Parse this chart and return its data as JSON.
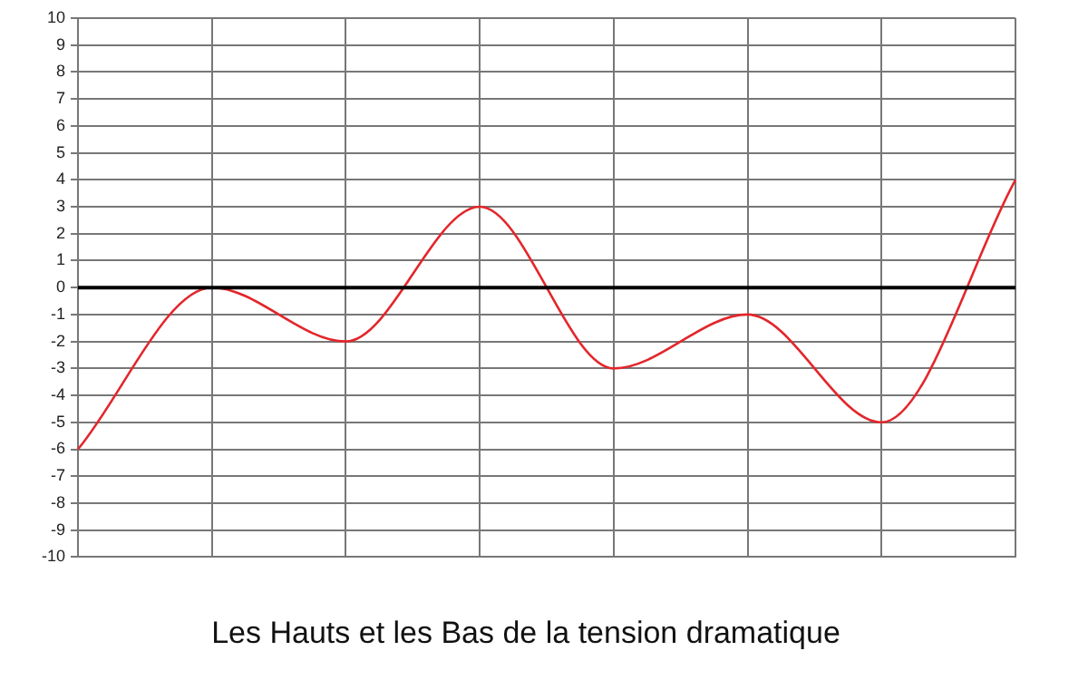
{
  "chart_data": {
    "type": "line",
    "title": "Les Hauts et les Bas de la tension dramatique",
    "categories": [
      null,
      null,
      null,
      null,
      null,
      null,
      null,
      null
    ],
    "series": [
      {
        "color": "#e3262b",
        "values": [
          -6,
          0,
          -2,
          3,
          -3,
          -1,
          -5,
          4
        ]
      }
    ],
    "ylim": [
      -10,
      10
    ],
    "yticks": [
      -10,
      -9,
      -8,
      -7,
      -6,
      -5,
      -4,
      -3,
      -2,
      -1,
      0,
      1,
      2,
      3,
      4,
      5,
      6,
      7,
      8,
      9,
      10
    ],
    "grid": true,
    "legend": false,
    "marker": "none",
    "line_style": "solid",
    "ref_lines": [
      {
        "axis": "y",
        "value": 0,
        "color": "#000000"
      }
    ]
  }
}
